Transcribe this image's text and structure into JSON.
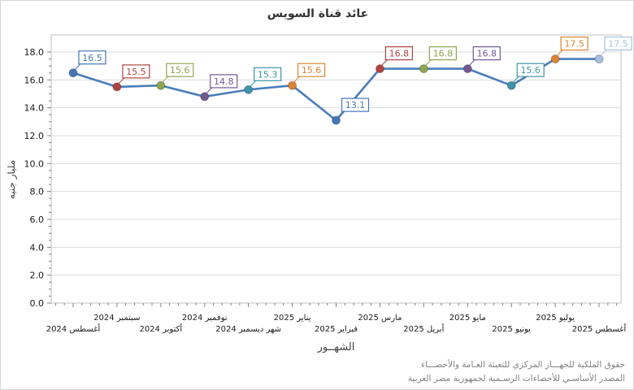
{
  "title": "عائد قناة السويس",
  "chart_data": {
    "type": "line",
    "title": "عائد قناة السويس",
    "xlabel": "الشهــور",
    "ylabel": "مليار جنيه",
    "categories": [
      "أغسطس 2024",
      "سبتمبر 2024",
      "أكتوبر 2024",
      "نوفمبر 2024",
      "شهر ديسمبر 2024",
      "يناير 2025",
      "فبراير 2025",
      "مارس 2025",
      "أبريل 2025",
      "مايو 2025",
      "يونيو 2025",
      "يوليو 2025",
      "أغسطس 2025"
    ],
    "values": [
      16.5,
      15.5,
      15.6,
      14.8,
      15.3,
      15.6,
      13.1,
      16.8,
      16.8,
      16.8,
      15.6,
      17.5,
      17.5
    ],
    "point_colors": [
      "#4576B5",
      "#AF4341",
      "#8DA64F",
      "#71588F",
      "#3E95A8",
      "#DB8432",
      "#4576B5",
      "#AF4341",
      "#8DA64F",
      "#71588F",
      "#3E95A8",
      "#DB8432",
      "#A7C0DE"
    ],
    "line_color": "#4A7EBB",
    "grid": true,
    "legend": "none",
    "data_labels": "boxed",
    "ylim": [
      0,
      19.2
    ],
    "ytick_step": 2,
    "ytick_minor_step": 0.5,
    "gridline_color": "#DCDCDC",
    "plot_border_color": "#C0C0C0",
    "tick_color": "#808080",
    "axis_text_color": "#1a1a1a"
  },
  "footer": {
    "line1": "حقوق الملكية للجهـــاز المركزي للتعبئة العـامة والأحصـــاء",
    "line2": "المصدر الأساسـي للأحصاءات الرسـمية لجمهورية مصر العربية"
  }
}
